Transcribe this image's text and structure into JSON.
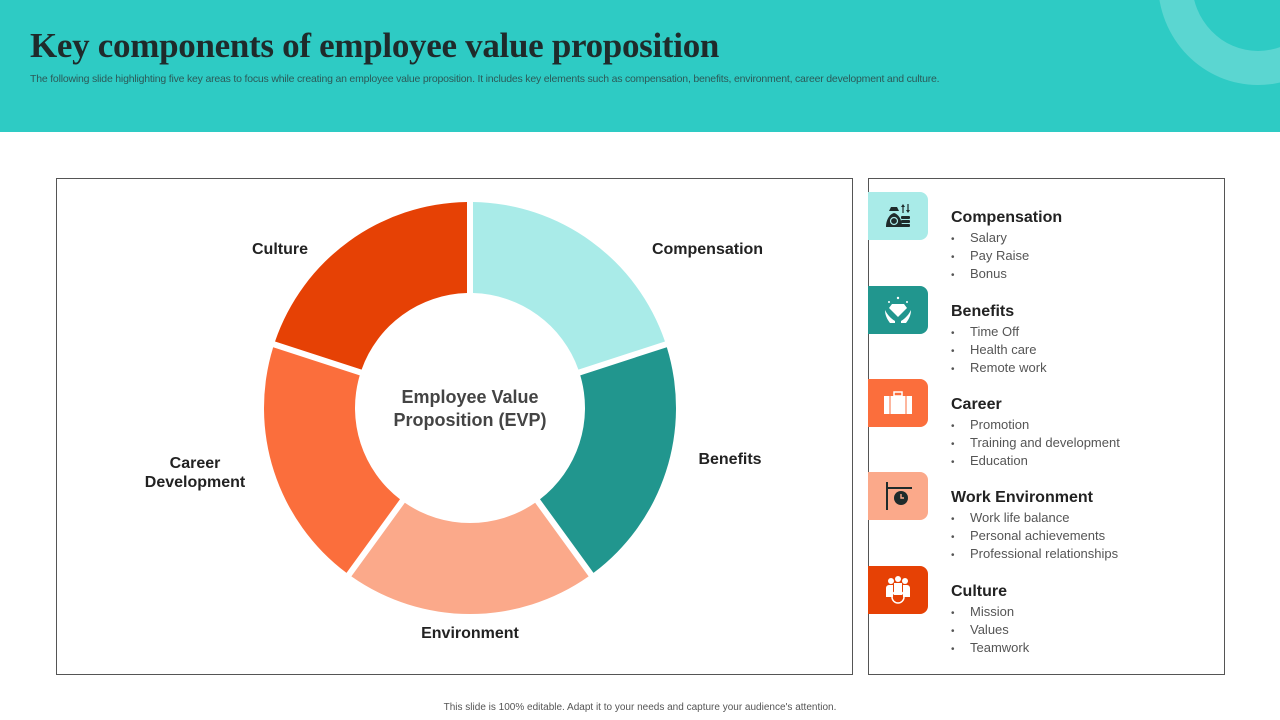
{
  "header": {
    "title": "Key components  of employee  value proposition",
    "subtitle": "The following slide highlighting five key  areas to focus while creating an employee value proposition. It includes key elements such as compensation, benefits, environment, career development and culture."
  },
  "diagram": {
    "center_label_line1": "Employee Value",
    "center_label_line2": "Proposition (EVP)",
    "segments": [
      {
        "label": "Compensation",
        "color": "#A9EBE8"
      },
      {
        "label": "Benefits",
        "color": "#21968E"
      },
      {
        "label": "Environment",
        "color": "#FBA98A"
      },
      {
        "label_line1": "Career",
        "label_line2": "Development",
        "color": "#FB6E3C"
      },
      {
        "label": "Culture",
        "color": "#E64105"
      }
    ]
  },
  "details": [
    {
      "name": "Compensation",
      "icon": "money-bag-icon",
      "color": "#A9EBE8",
      "bullets": [
        "Salary",
        "Pay Raise",
        "Bonus"
      ]
    },
    {
      "name": "Benefits",
      "icon": "diamond-hands-icon",
      "color": "#21968E",
      "bullets": [
        "Time Off",
        "Health care",
        "Remote work"
      ]
    },
    {
      "name": "Career",
      "icon": "briefcase-icon",
      "color": "#FB6E3C",
      "bullets": [
        "Promotion",
        "Training  and development",
        "Education"
      ]
    },
    {
      "name": "Work Environment",
      "icon": "clock-sign-icon",
      "color": "#FBA98A",
      "bullets": [
        "Work life balance",
        "Personal achievements",
        "Professional relationships"
      ]
    },
    {
      "name": "Culture",
      "icon": "team-icon",
      "color": "#E64105",
      "bullets": [
        "Mission",
        "Values",
        "Teamwork"
      ]
    }
  ],
  "footer": "This slide is 100% editable.  Adapt it to your needs and capture your audience's attention."
}
